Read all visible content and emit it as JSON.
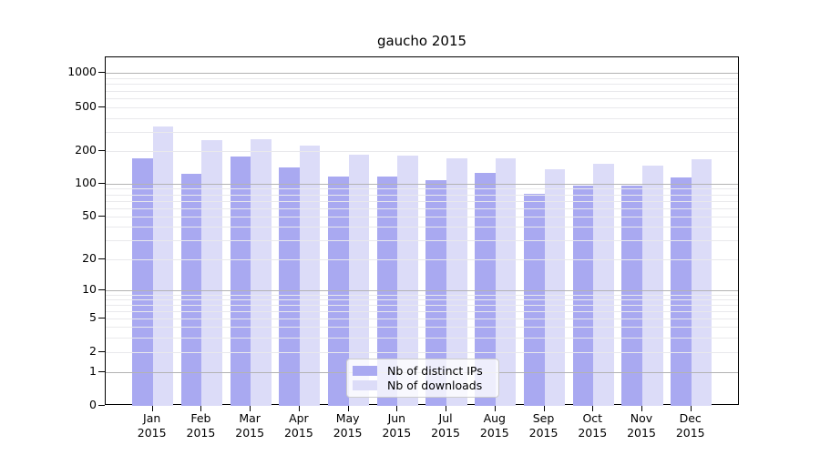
{
  "chart_data": {
    "type": "bar",
    "title": "gaucho 2015",
    "categories": [
      "Jan 2015",
      "Feb 2015",
      "Mar 2015",
      "Apr 2015",
      "May 2015",
      "Jun 2015",
      "Jul 2015",
      "Aug 2015",
      "Sep 2015",
      "Oct 2015",
      "Nov 2015",
      "Dec 2015"
    ],
    "series": [
      {
        "name": "Nb of distinct IPs",
        "color": "#a9a9f1",
        "values": [
          172,
          124,
          178,
          142,
          117,
          116,
          108,
          125,
          81,
          97,
          96,
          115
        ]
      },
      {
        "name": "Nb of downloads",
        "color": "#dcdcf8",
        "values": [
          335,
          250,
          255,
          225,
          184,
          182,
          170,
          170,
          136,
          152,
          147,
          168
        ]
      }
    ],
    "xlabel": "",
    "ylabel": "",
    "y_axis": {
      "scale": "symlog",
      "tick_labels": [
        "0",
        "1",
        "2",
        "5",
        "10",
        "20",
        "50",
        "100",
        "200",
        "500",
        "1000"
      ],
      "tick_values": [
        0,
        1,
        2,
        5,
        10,
        20,
        50,
        100,
        200,
        500,
        1000
      ],
      "ylim": [
        0,
        1400
      ],
      "major_grid_values": [
        1,
        10,
        100,
        1000
      ]
    },
    "grid": {
      "on": true,
      "major_color": "#b3b3b3",
      "minor_color": "#e9e9ec"
    },
    "legend": {
      "position": "lower center",
      "entries": [
        "Nb of distinct IPs",
        "Nb of downloads"
      ]
    }
  }
}
